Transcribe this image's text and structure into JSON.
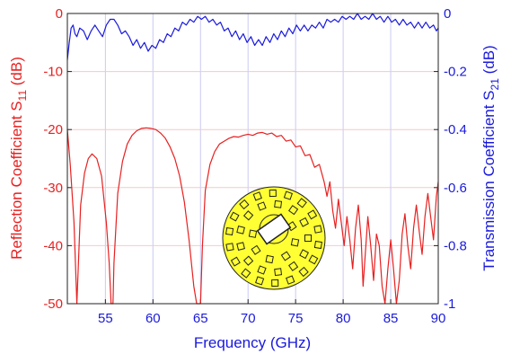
{
  "colors": {
    "s11": "#e82020",
    "s21": "#1a1adc",
    "grid_h": "#f4c9c9",
    "grid_v": "#c9c9f4",
    "inset_fill": "#ffff33"
  },
  "chart_data": {
    "type": "line",
    "title": "",
    "xlabel": "Frequency (GHz)",
    "ylabel_left": "Reflection Coefficient S11 (dB)",
    "ylabel_left_parts": [
      "Reflection Coefficient S",
      "11",
      " (dB)"
    ],
    "ylabel_right": "Transmission Coefficient S21 (dB)",
    "ylabel_right_parts": [
      "Transmission Coefficient S",
      "21",
      " (dB)"
    ],
    "xlim": [
      51,
      90
    ],
    "ylim_left": [
      -50,
      0
    ],
    "ylim_right": [
      -1,
      0
    ],
    "x_ticks": [
      55,
      60,
      65,
      70,
      75,
      80,
      85,
      90
    ],
    "y_left_ticks": [
      0,
      -10,
      -20,
      -30,
      -40,
      -50
    ],
    "y_right_ticks": [
      0,
      -0.2,
      -0.4,
      -0.6,
      -0.8,
      -1
    ],
    "x_tick_labels": [
      "55",
      "60",
      "65",
      "70",
      "75",
      "80",
      "85",
      "90"
    ],
    "y_left_tick_labels": [
      "0",
      "-10",
      "-20",
      "-30",
      "-40",
      "-50"
    ],
    "y_right_tick_labels": [
      "0",
      "-0.2",
      "-0.4",
      "-0.6",
      "-0.8",
      "-1"
    ],
    "grid": true,
    "series": [
      {
        "axis": "left",
        "color": "s11",
        "x": [
          51.0,
          51.3,
          51.7,
          52.0,
          52.4,
          52.8,
          53.2,
          53.6,
          54.1,
          54.6,
          55.1,
          55.4,
          55.6,
          55.7,
          55.8,
          55.9,
          56.3,
          56.8,
          57.3,
          57.8,
          58.3,
          58.8,
          59.3,
          59.8,
          60.3,
          60.8,
          61.3,
          61.8,
          62.3,
          62.8,
          63.3,
          63.8,
          64.3,
          64.6,
          64.8,
          64.9,
          65.0,
          65.2,
          65.5,
          66.0,
          66.5,
          67.0,
          67.5,
          68.0,
          68.5,
          69.0,
          69.5,
          70.0,
          70.5,
          71.0,
          71.5,
          72.0,
          72.5,
          73.0,
          73.5,
          74.0,
          74.5,
          75.0,
          75.5,
          76.0,
          76.5,
          77.0,
          77.5,
          78.0,
          78.3,
          78.6,
          78.9,
          79.2,
          79.5,
          79.8,
          80.1,
          80.4,
          80.7,
          81.0,
          81.3,
          81.6,
          81.9,
          82.1,
          82.3,
          82.6,
          82.9,
          83.2,
          83.5,
          83.8,
          84.1,
          84.4,
          84.7,
          85.0,
          85.3,
          85.6,
          85.9,
          86.2,
          86.5,
          86.8,
          87.1,
          87.4,
          87.7,
          88.0,
          88.3,
          88.6,
          88.9,
          89.2,
          89.5,
          89.8,
          90.0
        ],
        "y": [
          -20.0,
          -26.0,
          -36.0,
          -50.0,
          -33.0,
          -27.5,
          -25.0,
          -24.2,
          -25.0,
          -28.0,
          -36.0,
          -43.0,
          -50.0,
          -50.0,
          -50.0,
          -43.0,
          -31.0,
          -25.5,
          -22.5,
          -21.0,
          -20.2,
          -19.8,
          -19.7,
          -19.8,
          -20.0,
          -20.6,
          -21.5,
          -23.0,
          -25.0,
          -28.0,
          -32.5,
          -39.0,
          -47.0,
          -50.0,
          -50.0,
          -50.0,
          -50.0,
          -40.0,
          -30.5,
          -26.0,
          -23.8,
          -22.5,
          -22.0,
          -21.5,
          -21.2,
          -21.3,
          -21.0,
          -20.8,
          -21.0,
          -20.6,
          -20.5,
          -20.8,
          -20.6,
          -21.2,
          -21.0,
          -22.0,
          -21.8,
          -23.0,
          -22.8,
          -24.5,
          -24.3,
          -26.5,
          -26.0,
          -29.0,
          -31.5,
          -29.0,
          -34.0,
          -37.0,
          -32.0,
          -36.0,
          -40.0,
          -35.0,
          -39.0,
          -44.0,
          -37.0,
          -33.0,
          -39.0,
          -47.0,
          -42.0,
          -35.0,
          -40.0,
          -46.0,
          -38.0,
          -40.0,
          -47.0,
          -50.0,
          -44.0,
          -39.0,
          -44.0,
          -50.0,
          -46.0,
          -38.0,
          -34.5,
          -40.0,
          -44.0,
          -37.0,
          -33.0,
          -37.5,
          -41.5,
          -35.0,
          -31.0,
          -35.0,
          -39.0,
          -31.5,
          -29.0
        ]
      },
      {
        "axis": "right",
        "color": "s21",
        "x": [
          51.0,
          51.2,
          51.4,
          51.6,
          51.8,
          52.0,
          52.3,
          52.7,
          53.1,
          53.5,
          53.9,
          54.3,
          54.7,
          55.1,
          55.5,
          55.9,
          56.3,
          56.7,
          57.1,
          57.5,
          57.9,
          58.3,
          58.7,
          59.1,
          59.5,
          59.9,
          60.3,
          60.7,
          61.1,
          61.5,
          61.9,
          62.3,
          62.7,
          63.1,
          63.5,
          63.9,
          64.3,
          64.7,
          65.1,
          65.5,
          65.9,
          66.3,
          66.7,
          67.1,
          67.5,
          67.9,
          68.3,
          68.7,
          69.1,
          69.5,
          69.9,
          70.3,
          70.7,
          71.1,
          71.5,
          71.9,
          72.3,
          72.7,
          73.1,
          73.5,
          73.9,
          74.3,
          74.7,
          75.1,
          75.5,
          75.9,
          76.3,
          76.7,
          77.1,
          77.5,
          77.9,
          78.3,
          78.7,
          79.1,
          79.5,
          79.9,
          80.3,
          80.7,
          81.1,
          81.5,
          81.9,
          82.3,
          82.7,
          83.1,
          83.5,
          83.9,
          84.3,
          84.7,
          85.1,
          85.5,
          85.9,
          86.3,
          86.7,
          87.1,
          87.5,
          87.9,
          88.3,
          88.7,
          89.1,
          89.5,
          89.8,
          90.0
        ],
        "y": [
          -0.16,
          -0.1,
          -0.05,
          -0.04,
          -0.07,
          -0.08,
          -0.05,
          -0.06,
          -0.09,
          -0.06,
          -0.04,
          -0.06,
          -0.08,
          -0.04,
          -0.02,
          -0.02,
          -0.04,
          -0.07,
          -0.06,
          -0.08,
          -0.11,
          -0.09,
          -0.12,
          -0.1,
          -0.13,
          -0.11,
          -0.12,
          -0.09,
          -0.1,
          -0.07,
          -0.08,
          -0.05,
          -0.06,
          -0.03,
          -0.04,
          -0.02,
          -0.03,
          -0.01,
          -0.02,
          -0.01,
          -0.03,
          -0.02,
          -0.04,
          -0.03,
          -0.06,
          -0.05,
          -0.08,
          -0.06,
          -0.09,
          -0.07,
          -0.1,
          -0.08,
          -0.11,
          -0.09,
          -0.11,
          -0.08,
          -0.1,
          -0.07,
          -0.09,
          -0.06,
          -0.08,
          -0.05,
          -0.07,
          -0.04,
          -0.06,
          -0.04,
          -0.06,
          -0.04,
          -0.05,
          -0.03,
          -0.05,
          -0.02,
          -0.03,
          -0.02,
          -0.03,
          -0.01,
          -0.02,
          -0.01,
          -0.02,
          0.0,
          -0.02,
          -0.01,
          -0.02,
          0.0,
          -0.02,
          -0.01,
          -0.03,
          -0.01,
          -0.03,
          -0.02,
          -0.04,
          -0.02,
          -0.04,
          -0.03,
          -0.05,
          -0.03,
          -0.05,
          -0.03,
          -0.05,
          -0.04,
          -0.06,
          -0.05
        ]
      }
    ]
  }
}
